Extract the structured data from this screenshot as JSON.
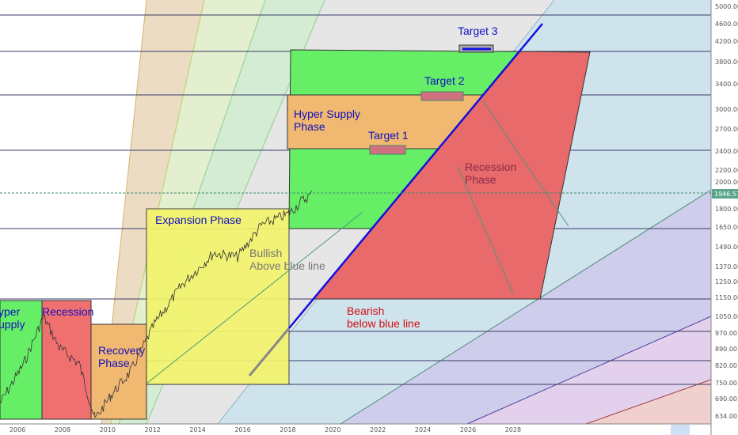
{
  "chart_data": {
    "type": "line",
    "y_ticks": [
      "5000.00",
      "4600.00",
      "4200.00",
      "3800.00",
      "3400.00",
      "3000.00",
      "2700.00",
      "2400.00",
      "2200.00",
      "2000.00",
      "1800.00",
      "1650.00",
      "1490.00",
      "1370.00",
      "1250.00",
      "1150.00",
      "1050.00",
      "970.00",
      "890.00",
      "820.00",
      "750.00",
      "690.00",
      "634.00"
    ],
    "x_ticks": [
      "2006",
      "2008",
      "2010",
      "2012",
      "2014",
      "2016",
      "2018",
      "2020",
      "2022",
      "2024",
      "2026",
      "2028"
    ],
    "last_price": "1946.57",
    "y_scale": "log",
    "colors": {
      "last_price": "#5aa68a",
      "trendline": "#1010e0",
      "price": "#333333"
    }
  },
  "annotations": {
    "hyper_supply_left": "yper\nupply",
    "recession_left": "Recession",
    "recovery": "Recovery\nPhase",
    "expansion": "Expansion Phase",
    "bullish": "Bullish\nAbove blue line",
    "hyper_supply": "Hyper Supply\nPhase",
    "target1": "Target 1",
    "target2": "Target 2",
    "target3": "Target 3",
    "recession": "Recession\nPhase",
    "bearish": "Bearish\nbelow blue line"
  }
}
